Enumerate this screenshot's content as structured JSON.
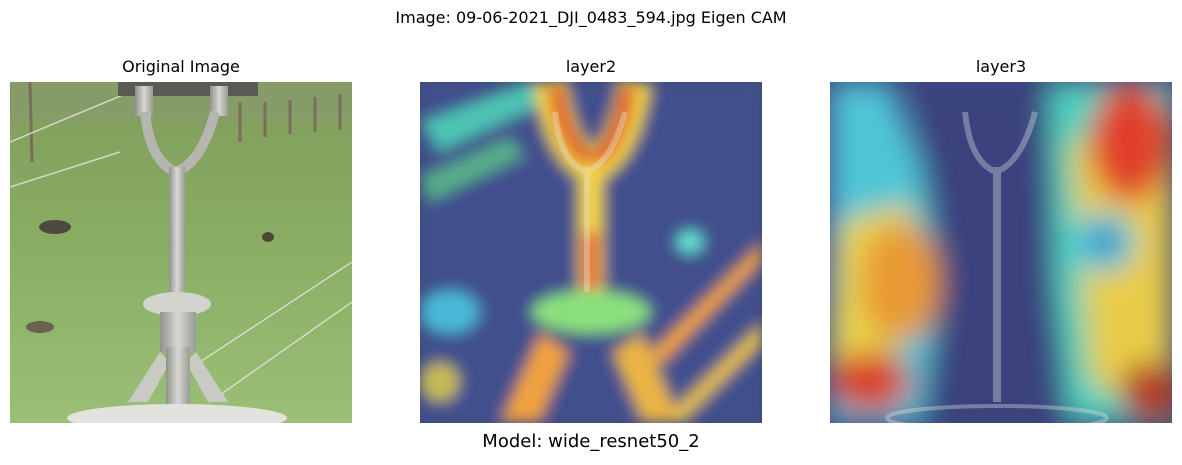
{
  "figure": {
    "suptitle": "Image: 09-06-2021_DJI_0483_594.jpg Eigen CAM",
    "footer": "Model: wide_resnet50_2"
  },
  "panels": [
    {
      "title": "Original Image"
    },
    {
      "title": "layer2"
    },
    {
      "title": "layer3"
    }
  ]
}
